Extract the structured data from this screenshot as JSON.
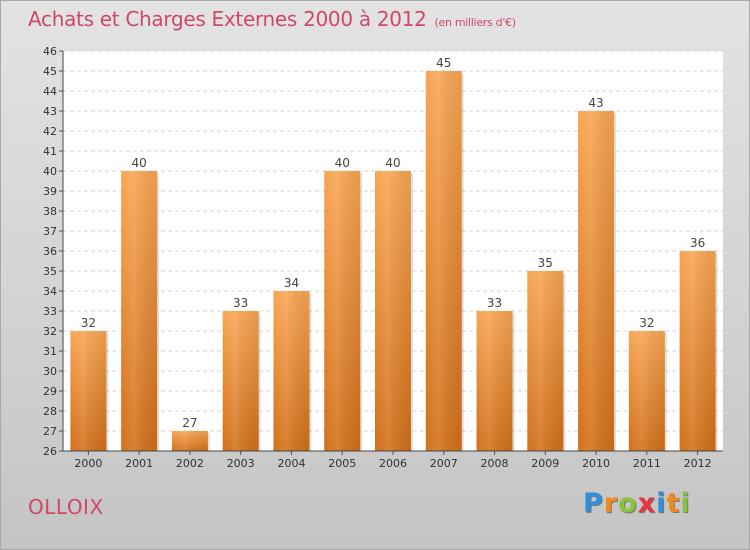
{
  "header": {
    "title": "Achats et Charges Externes 2000 à 2012",
    "subtitle": "(en milliers d'€)"
  },
  "footer": {
    "city": "OLLOIX",
    "logo_letters": [
      {
        "ch": "P",
        "color": "#2f8fd8"
      },
      {
        "ch": "r",
        "color": "#f08a1c"
      },
      {
        "ch": "o",
        "color": "#8ac43f"
      },
      {
        "ch": "x",
        "color": "#e8343c"
      },
      {
        "ch": "i",
        "color": "#2f8fd8"
      },
      {
        "ch": "t",
        "color": "#f08a1c"
      },
      {
        "ch": "i",
        "color": "#8ac43f"
      }
    ]
  },
  "chart_data": {
    "type": "bar",
    "categories": [
      "2000",
      "2001",
      "2002",
      "2003",
      "2004",
      "2005",
      "2006",
      "2007",
      "2008",
      "2009",
      "2010",
      "2011",
      "2012"
    ],
    "values": [
      32,
      40,
      27,
      33,
      34,
      40,
      40,
      45,
      33,
      35,
      43,
      32,
      36
    ],
    "title": "Achats et Charges Externes 2000 à 2012",
    "ylim": [
      26,
      46
    ],
    "yticks": [
      26,
      27,
      28,
      29,
      30,
      31,
      32,
      33,
      34,
      35,
      36,
      37,
      38,
      39,
      40,
      41,
      42,
      43,
      44,
      45,
      46
    ],
    "grid": true,
    "bar_color_top": "#f8a552",
    "bar_color_bottom": "#d26f18"
  }
}
